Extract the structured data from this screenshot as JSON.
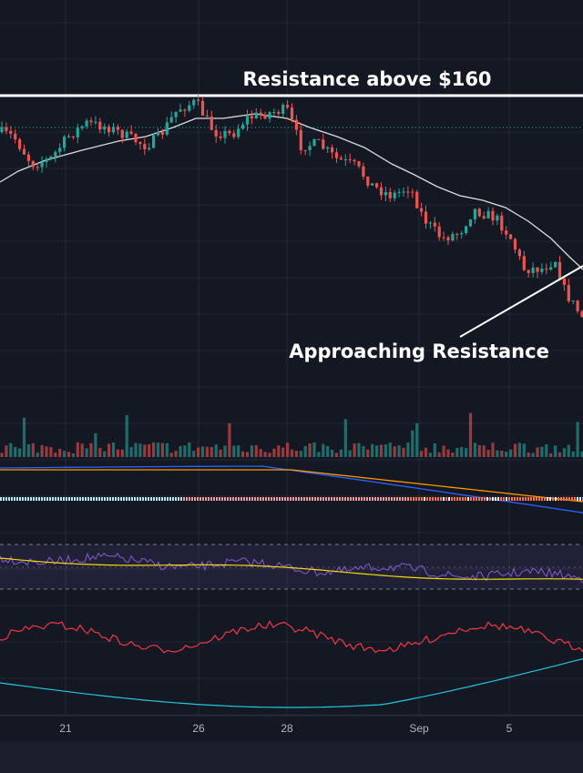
{
  "colors": {
    "background": "#141823",
    "grid": "#242937",
    "candle_up": "#26a69a",
    "candle_down": "#ef5350",
    "ma_line": "#dcdcdc",
    "macd_line": "#2962ff",
    "signal_line": "#ff9800",
    "rsi_line": "#7e57c2",
    "rsi_ma": "#f5d90a",
    "osc_red": "#f23645",
    "osc_cyan": "#26c6da"
  },
  "chart_data": [
    {
      "type": "candlestick",
      "annotations": [
        "Resistance above $160",
        "Approaching Resistance"
      ],
      "x_ticks": [
        "21",
        "26",
        "28",
        "Sep",
        "5"
      ],
      "resistance_line": "horizontal",
      "moving_average": true,
      "grid": true
    },
    {
      "type": "bar",
      "name_hidden": true
    },
    {
      "type": "line"
    },
    {
      "type": "line"
    },
    {
      "type": "line"
    }
  ]
}
